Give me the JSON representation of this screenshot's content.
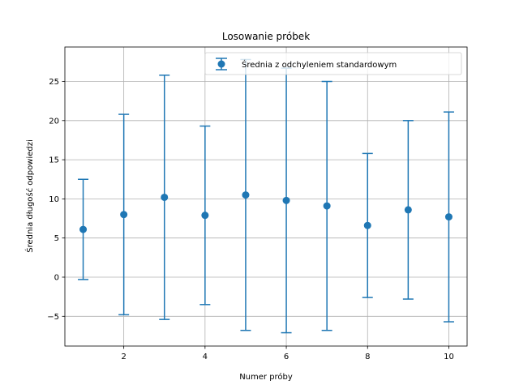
{
  "chart_data": {
    "type": "scatter",
    "title": "Losowanie próbek",
    "xlabel": "Numer próby",
    "ylabel": "Średnia długość odpowiedzi",
    "xlim": [
      0.55,
      10.45
    ],
    "ylim": [
      -8.8,
      29.4
    ],
    "xticks": [
      2,
      4,
      6,
      8,
      10
    ],
    "yticks": [
      -5,
      0,
      5,
      10,
      15,
      20,
      25
    ],
    "grid": true,
    "legend_position": "top-right",
    "series": [
      {
        "name": "Średnia z odchyleniem standardowym",
        "color": "#1f77b4",
        "x": [
          1,
          2,
          3,
          4,
          5,
          6,
          7,
          8,
          9,
          10
        ],
        "y": [
          6.1,
          8.0,
          10.2,
          7.9,
          10.5,
          9.8,
          9.1,
          6.6,
          8.6,
          7.7
        ],
        "error": [
          6.4,
          12.8,
          15.6,
          11.4,
          17.3,
          16.9,
          15.9,
          9.2,
          11.4,
          13.4
        ]
      }
    ]
  }
}
